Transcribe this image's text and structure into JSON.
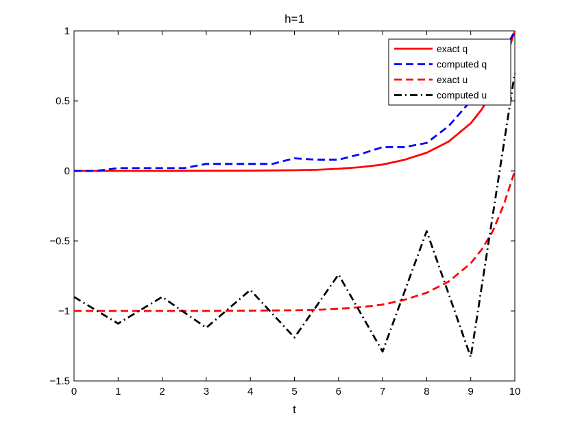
{
  "chart_data": {
    "type": "line",
    "title": "h=1",
    "xlabel": "t",
    "ylabel": "",
    "xlim": [
      0,
      10
    ],
    "ylim": [
      -1.5,
      1
    ],
    "xticks": [
      0,
      1,
      2,
      3,
      4,
      5,
      6,
      7,
      8,
      9,
      10
    ],
    "xtick_labels": [
      "0",
      "1",
      "2",
      "3",
      "4",
      "5",
      "6",
      "7",
      "8",
      "9",
      "10"
    ],
    "yticks": [
      -1.5,
      -1,
      -0.5,
      0,
      0.5,
      1
    ],
    "ytick_labels": [
      "−1.5",
      "−1",
      "−0.5",
      "0",
      "0.5",
      "1"
    ],
    "grid": false,
    "legend_position": "top-right",
    "series": [
      {
        "name": "exact q",
        "color": "#ff0000",
        "line_style": "solid",
        "x": [
          0,
          1,
          2,
          3,
          4,
          5,
          5.5,
          6,
          6.5,
          7,
          7.5,
          8,
          8.5,
          9,
          9.25,
          9.5,
          9.75,
          10
        ],
        "y": [
          0.0,
          0.0,
          0.0,
          0.001,
          0.002,
          0.005,
          0.008,
          0.015,
          0.027,
          0.045,
          0.08,
          0.13,
          0.21,
          0.34,
          0.44,
          0.57,
          0.76,
          1.0
        ]
      },
      {
        "name": "computed q",
        "color": "#0000ff",
        "line_style": "dashed",
        "x": [
          0,
          0.5,
          1,
          1.5,
          2,
          2.5,
          3,
          3.5,
          4,
          4.5,
          5,
          5.5,
          6,
          6.5,
          7,
          7.5,
          8,
          8.5,
          9,
          9.5,
          10
        ],
        "y": [
          0.0,
          0.0,
          0.02,
          0.02,
          0.02,
          0.02,
          0.05,
          0.05,
          0.05,
          0.05,
          0.09,
          0.08,
          0.08,
          0.12,
          0.17,
          0.17,
          0.2,
          0.32,
          0.5,
          0.7,
          1.0
        ]
      },
      {
        "name": "exact u",
        "color": "#ff0000",
        "line_style": "dashed",
        "x": [
          0,
          1,
          2,
          3,
          4,
          5,
          5.5,
          6,
          6.5,
          7,
          7.5,
          8,
          8.5,
          9,
          9.25,
          9.5,
          9.75,
          10
        ],
        "y": [
          -1.0,
          -1.0,
          -1.0,
          -1.0,
          -0.998,
          -0.995,
          -0.992,
          -0.985,
          -0.973,
          -0.955,
          -0.92,
          -0.87,
          -0.79,
          -0.66,
          -0.56,
          -0.43,
          -0.24,
          0.0
        ]
      },
      {
        "name": "computed u",
        "color": "#000000",
        "line_style": "dashdot",
        "x": [
          0,
          1,
          2,
          3,
          4,
          5,
          6,
          7,
          8,
          9,
          10
        ],
        "y": [
          -0.9,
          -1.09,
          -0.9,
          -1.12,
          -0.85,
          -1.19,
          -0.74,
          -1.29,
          -0.43,
          -1.33,
          0.7
        ]
      }
    ]
  }
}
